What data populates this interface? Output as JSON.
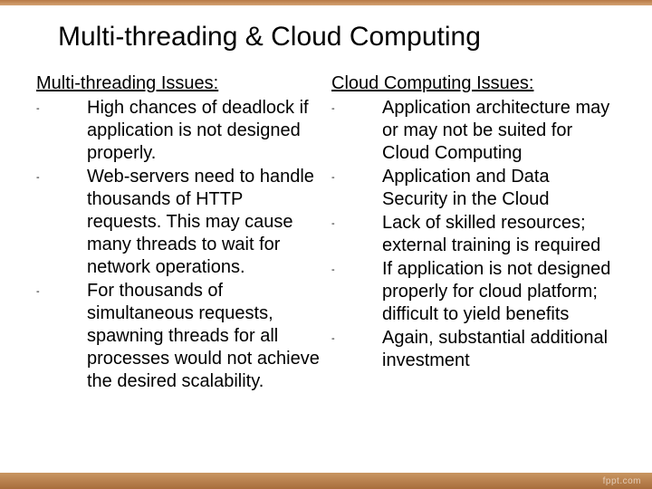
{
  "title": "Multi-threading & Cloud Computing",
  "accent_top_color_from": "#b87a46",
  "accent_top_color_to": "#d4a373",
  "accent_bottom_color_from": "#a86d3c",
  "accent_bottom_color_to": "#c99661",
  "background_color": "#ffffff",
  "text_color": "#000000",
  "title_fontsize": 30,
  "body_fontsize": 20,
  "bullet_char": "-",
  "left": {
    "heading": "Multi-threading Issues:",
    "items": [
      "High chances of deadlock if application is not designed properly.",
      "Web-servers need to handle thousands of HTTP requests. This may cause many threads to wait for network operations.",
      "For thousands of simultaneous requests, spawning threads for all processes would not achieve the desired scalability."
    ]
  },
  "right": {
    "heading": "Cloud Computing Issues:",
    "items": [
      "Application architecture may or may not be suited for Cloud Computing",
      "Application and Data Security in the Cloud",
      "Lack of skilled resources; external training is required",
      "If application is not designed properly for cloud platform; difficult to yield benefits",
      "Again, substantial additional investment"
    ]
  },
  "watermark": "fppt.com"
}
